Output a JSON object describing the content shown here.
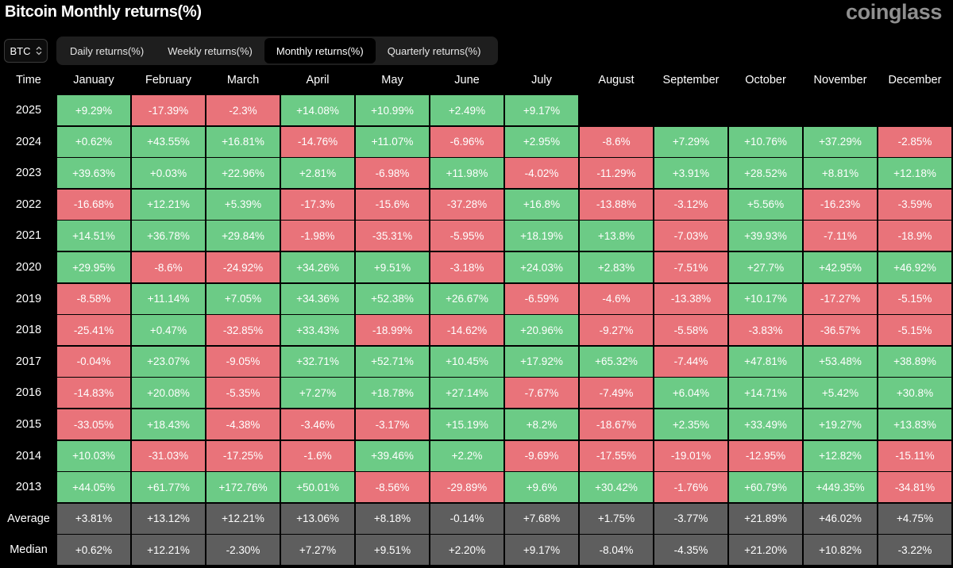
{
  "header": {
    "title": "Bitcoin Monthly returns(%)",
    "logo": "coinglass"
  },
  "coin_select": {
    "value": "BTC"
  },
  "tabs": [
    {
      "label": "Daily returns(%)",
      "active": false
    },
    {
      "label": "Weekly returns(%)",
      "active": false
    },
    {
      "label": "Monthly returns(%)",
      "active": true
    },
    {
      "label": "Quarterly returns(%)",
      "active": false
    }
  ],
  "table": {
    "time_header": "Time",
    "months": [
      "January",
      "February",
      "March",
      "April",
      "May",
      "June",
      "July",
      "August",
      "September",
      "October",
      "November",
      "December"
    ],
    "rows": [
      {
        "label": "2025",
        "values": [
          "+9.29%",
          "-17.39%",
          "-2.3%",
          "+14.08%",
          "+10.99%",
          "+2.49%",
          "+9.17%"
        ]
      },
      {
        "label": "2024",
        "values": [
          "+0.62%",
          "+43.55%",
          "+16.81%",
          "-14.76%",
          "+11.07%",
          "-6.96%",
          "+2.95%",
          "-8.6%",
          "+7.29%",
          "+10.76%",
          "+37.29%",
          "-2.85%"
        ]
      },
      {
        "label": "2023",
        "values": [
          "+39.63%",
          "+0.03%",
          "+22.96%",
          "+2.81%",
          "-6.98%",
          "+11.98%",
          "-4.02%",
          "-11.29%",
          "+3.91%",
          "+28.52%",
          "+8.81%",
          "+12.18%"
        ]
      },
      {
        "label": "2022",
        "values": [
          "-16.68%",
          "+12.21%",
          "+5.39%",
          "-17.3%",
          "-15.6%",
          "-37.28%",
          "+16.8%",
          "-13.88%",
          "-3.12%",
          "+5.56%",
          "-16.23%",
          "-3.59%"
        ]
      },
      {
        "label": "2021",
        "values": [
          "+14.51%",
          "+36.78%",
          "+29.84%",
          "-1.98%",
          "-35.31%",
          "-5.95%",
          "+18.19%",
          "+13.8%",
          "-7.03%",
          "+39.93%",
          "-7.11%",
          "-18.9%"
        ]
      },
      {
        "label": "2020",
        "values": [
          "+29.95%",
          "-8.6%",
          "-24.92%",
          "+34.26%",
          "+9.51%",
          "-3.18%",
          "+24.03%",
          "+2.83%",
          "-7.51%",
          "+27.7%",
          "+42.95%",
          "+46.92%"
        ]
      },
      {
        "label": "2019",
        "values": [
          "-8.58%",
          "+11.14%",
          "+7.05%",
          "+34.36%",
          "+52.38%",
          "+26.67%",
          "-6.59%",
          "-4.6%",
          "-13.38%",
          "+10.17%",
          "-17.27%",
          "-5.15%"
        ]
      },
      {
        "label": "2018",
        "values": [
          "-25.41%",
          "+0.47%",
          "-32.85%",
          "+33.43%",
          "-18.99%",
          "-14.62%",
          "+20.96%",
          "-9.27%",
          "-5.58%",
          "-3.83%",
          "-36.57%",
          "-5.15%"
        ]
      },
      {
        "label": "2017",
        "values": [
          "-0.04%",
          "+23.07%",
          "-9.05%",
          "+32.71%",
          "+52.71%",
          "+10.45%",
          "+17.92%",
          "+65.32%",
          "-7.44%",
          "+47.81%",
          "+53.48%",
          "+38.89%"
        ]
      },
      {
        "label": "2016",
        "values": [
          "-14.83%",
          "+20.08%",
          "-5.35%",
          "+7.27%",
          "+18.78%",
          "+27.14%",
          "-7.67%",
          "-7.49%",
          "+6.04%",
          "+14.71%",
          "+5.42%",
          "+30.8%"
        ]
      },
      {
        "label": "2015",
        "values": [
          "-33.05%",
          "+18.43%",
          "-4.38%",
          "-3.46%",
          "-3.17%",
          "+15.19%",
          "+8.2%",
          "-18.67%",
          "+2.35%",
          "+33.49%",
          "+19.27%",
          "+13.83%"
        ]
      },
      {
        "label": "2014",
        "values": [
          "+10.03%",
          "-31.03%",
          "-17.25%",
          "-1.6%",
          "+39.46%",
          "+2.2%",
          "-9.69%",
          "-17.55%",
          "-19.01%",
          "-12.95%",
          "+12.82%",
          "-15.11%"
        ]
      },
      {
        "label": "2013",
        "values": [
          "+44.05%",
          "+61.77%",
          "+172.76%",
          "+50.01%",
          "-8.56%",
          "-29.89%",
          "+9.6%",
          "+30.42%",
          "-1.76%",
          "+60.79%",
          "+449.35%",
          "-34.81%"
        ]
      }
    ],
    "summary": [
      {
        "label": "Average",
        "values": [
          "+3.81%",
          "+13.12%",
          "+12.21%",
          "+13.06%",
          "+8.18%",
          "-0.14%",
          "+7.68%",
          "+1.75%",
          "-3.77%",
          "+21.89%",
          "+46.02%",
          "+4.75%"
        ]
      },
      {
        "label": "Median",
        "values": [
          "+0.62%",
          "+12.21%",
          "-2.30%",
          "+7.27%",
          "+9.51%",
          "+2.20%",
          "+9.17%",
          "-8.04%",
          "-4.35%",
          "+21.20%",
          "+10.82%",
          "-3.22%"
        ]
      }
    ]
  },
  "colors": {
    "positive": "#6ccb86",
    "negative": "#e9737a",
    "summary": "#5e5e5e",
    "background": "#000000"
  }
}
